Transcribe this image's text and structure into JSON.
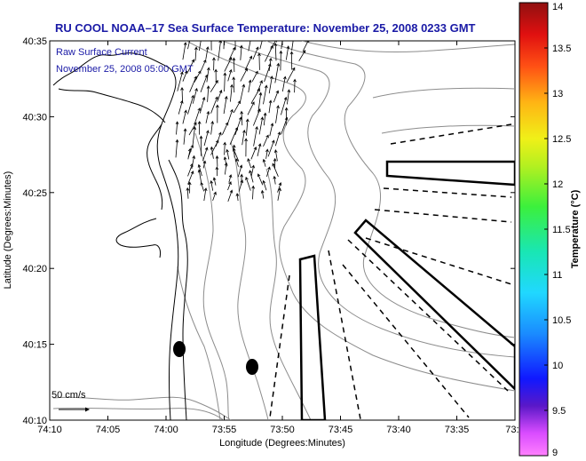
{
  "title": "RU COOL  NOAA–17  Sea Surface Temperature:  November 25, 2008 0233 GMT",
  "annotation": {
    "line1": "Raw Surface Current",
    "line2": "November 25, 2008 05:00 GMT"
  },
  "scale_label": "50 cm/s",
  "axes": {
    "xlabel": "Longitude (Degrees:Minutes)",
    "ylabel": "Latitude (Degrees:Minutes)",
    "xticks": [
      "74:10",
      "74:05",
      "74:00",
      "73:55",
      "73:50",
      "73:45",
      "73:40",
      "73:35",
      "73:3"
    ],
    "yticks": [
      "40:35",
      "40:30",
      "40:25",
      "40:20",
      "40:15",
      "40:10"
    ]
  },
  "colorbar": {
    "label": "Temperature (°C)",
    "min": 9,
    "max": 14,
    "ticks": [
      "14",
      "13.5",
      "13",
      "12.5",
      "12",
      "11.5",
      "11",
      "10.5",
      "10",
      "9.5",
      "9"
    ]
  },
  "colors": {
    "title": "#1a1aa6",
    "coast": "#000000",
    "bathymetry": "#888888",
    "plot_background": "#ffffff"
  }
}
